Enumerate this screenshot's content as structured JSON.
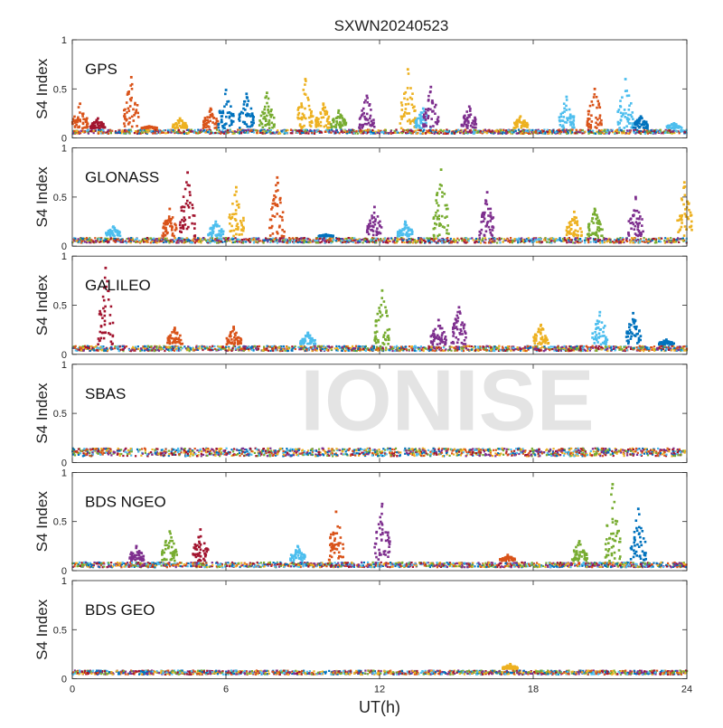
{
  "figure": {
    "title": "SXWN20240523",
    "xlabel": "UT(h)",
    "ylabel": "S4 Index",
    "watermark": "IONISE",
    "xticks": [
      "0",
      "6",
      "12",
      "18",
      "24"
    ],
    "yticks": [
      "0",
      "0.5",
      "1"
    ],
    "colors": [
      "#0072BD",
      "#D95319",
      "#EDB120",
      "#7E2F8E",
      "#77AC30",
      "#4DBEEE",
      "#A2142F"
    ]
  },
  "chart_data": [
    {
      "type": "scatter",
      "panel": "GPS",
      "xlim": [
        0,
        24
      ],
      "ylim": [
        0,
        1
      ],
      "grid": false,
      "baseline": [
        0.06,
        0.1
      ],
      "peaks": [
        {
          "x": 0.3,
          "y": 0.35,
          "series": 1
        },
        {
          "x": 1.0,
          "y": 0.2,
          "series": 6
        },
        {
          "x": 2.3,
          "y": 0.62,
          "series": 1
        },
        {
          "x": 3.0,
          "y": 0.12,
          "series": 1
        },
        {
          "x": 4.2,
          "y": 0.2,
          "series": 2
        },
        {
          "x": 5.4,
          "y": 0.3,
          "series": 1
        },
        {
          "x": 6.0,
          "y": 0.49,
          "series": 0
        },
        {
          "x": 6.8,
          "y": 0.45,
          "series": 0
        },
        {
          "x": 7.6,
          "y": 0.46,
          "series": 4
        },
        {
          "x": 9.1,
          "y": 0.6,
          "series": 2
        },
        {
          "x": 9.8,
          "y": 0.35,
          "series": 2
        },
        {
          "x": 10.4,
          "y": 0.28,
          "series": 4
        },
        {
          "x": 11.5,
          "y": 0.43,
          "series": 3
        },
        {
          "x": 13.1,
          "y": 0.7,
          "series": 2
        },
        {
          "x": 13.7,
          "y": 0.3,
          "series": 5
        },
        {
          "x": 14.0,
          "y": 0.52,
          "series": 3
        },
        {
          "x": 15.5,
          "y": 0.32,
          "series": 3
        },
        {
          "x": 17.5,
          "y": 0.22,
          "series": 2
        },
        {
          "x": 19.3,
          "y": 0.42,
          "series": 5
        },
        {
          "x": 20.4,
          "y": 0.5,
          "series": 1
        },
        {
          "x": 21.6,
          "y": 0.6,
          "series": 5
        },
        {
          "x": 22.2,
          "y": 0.22,
          "series": 0
        },
        {
          "x": 23.5,
          "y": 0.15,
          "series": 5
        }
      ]
    },
    {
      "type": "scatter",
      "panel": "GLONASS",
      "xlim": [
        0,
        24
      ],
      "ylim": [
        0,
        1
      ],
      "grid": false,
      "baseline": [
        0.05,
        0.1
      ],
      "peaks": [
        {
          "x": 1.6,
          "y": 0.2,
          "series": 5
        },
        {
          "x": 3.8,
          "y": 0.38,
          "series": 1
        },
        {
          "x": 4.5,
          "y": 0.75,
          "series": 6
        },
        {
          "x": 5.6,
          "y": 0.25,
          "series": 5
        },
        {
          "x": 6.4,
          "y": 0.6,
          "series": 2
        },
        {
          "x": 8.0,
          "y": 0.7,
          "series": 1
        },
        {
          "x": 9.9,
          "y": 0.12,
          "series": 0
        },
        {
          "x": 11.8,
          "y": 0.4,
          "series": 3
        },
        {
          "x": 13.0,
          "y": 0.25,
          "series": 5
        },
        {
          "x": 14.4,
          "y": 0.78,
          "series": 4
        },
        {
          "x": 16.2,
          "y": 0.55,
          "series": 3
        },
        {
          "x": 19.6,
          "y": 0.35,
          "series": 2
        },
        {
          "x": 20.4,
          "y": 0.38,
          "series": 4
        },
        {
          "x": 22.0,
          "y": 0.5,
          "series": 3
        },
        {
          "x": 23.9,
          "y": 0.65,
          "series": 2
        }
      ]
    },
    {
      "type": "scatter",
      "panel": "GALILEO",
      "xlim": [
        0,
        24
      ],
      "ylim": [
        0,
        1
      ],
      "grid": false,
      "baseline": [
        0.05,
        0.1
      ],
      "peaks": [
        {
          "x": 1.3,
          "y": 0.88,
          "series": 6
        },
        {
          "x": 4.0,
          "y": 0.27,
          "series": 1
        },
        {
          "x": 6.3,
          "y": 0.28,
          "series": 1
        },
        {
          "x": 9.2,
          "y": 0.22,
          "series": 5
        },
        {
          "x": 12.1,
          "y": 0.65,
          "series": 4
        },
        {
          "x": 14.3,
          "y": 0.35,
          "series": 3
        },
        {
          "x": 15.1,
          "y": 0.48,
          "series": 3
        },
        {
          "x": 18.3,
          "y": 0.3,
          "series": 2
        },
        {
          "x": 20.6,
          "y": 0.43,
          "series": 5
        },
        {
          "x": 21.9,
          "y": 0.42,
          "series": 0
        },
        {
          "x": 23.2,
          "y": 0.15,
          "series": 0
        }
      ]
    },
    {
      "type": "scatter",
      "panel": "SBAS",
      "xlim": [
        0,
        24
      ],
      "ylim": [
        0,
        1
      ],
      "grid": false,
      "baseline": [
        0.08,
        0.16
      ],
      "peaks": []
    },
    {
      "type": "scatter",
      "panel": "BDS NGEO",
      "xlim": [
        0,
        24
      ],
      "ylim": [
        0,
        1
      ],
      "grid": false,
      "baseline": [
        0.05,
        0.1
      ],
      "peaks": [
        {
          "x": 2.5,
          "y": 0.25,
          "series": 3
        },
        {
          "x": 3.8,
          "y": 0.4,
          "series": 4
        },
        {
          "x": 5.0,
          "y": 0.42,
          "series": 6
        },
        {
          "x": 8.8,
          "y": 0.25,
          "series": 5
        },
        {
          "x": 10.3,
          "y": 0.6,
          "series": 1
        },
        {
          "x": 12.1,
          "y": 0.68,
          "series": 3
        },
        {
          "x": 17.0,
          "y": 0.16,
          "series": 1
        },
        {
          "x": 19.8,
          "y": 0.3,
          "series": 4
        },
        {
          "x": 21.1,
          "y": 0.88,
          "series": 4
        },
        {
          "x": 22.1,
          "y": 0.63,
          "series": 0
        }
      ]
    },
    {
      "type": "scatter",
      "panel": "BDS GEO",
      "xlim": [
        0,
        24
      ],
      "ylim": [
        0,
        1
      ],
      "grid": false,
      "baseline": [
        0.06,
        0.1
      ],
      "peaks": [
        {
          "x": 17.1,
          "y": 0.15,
          "series": 2
        }
      ]
    }
  ]
}
